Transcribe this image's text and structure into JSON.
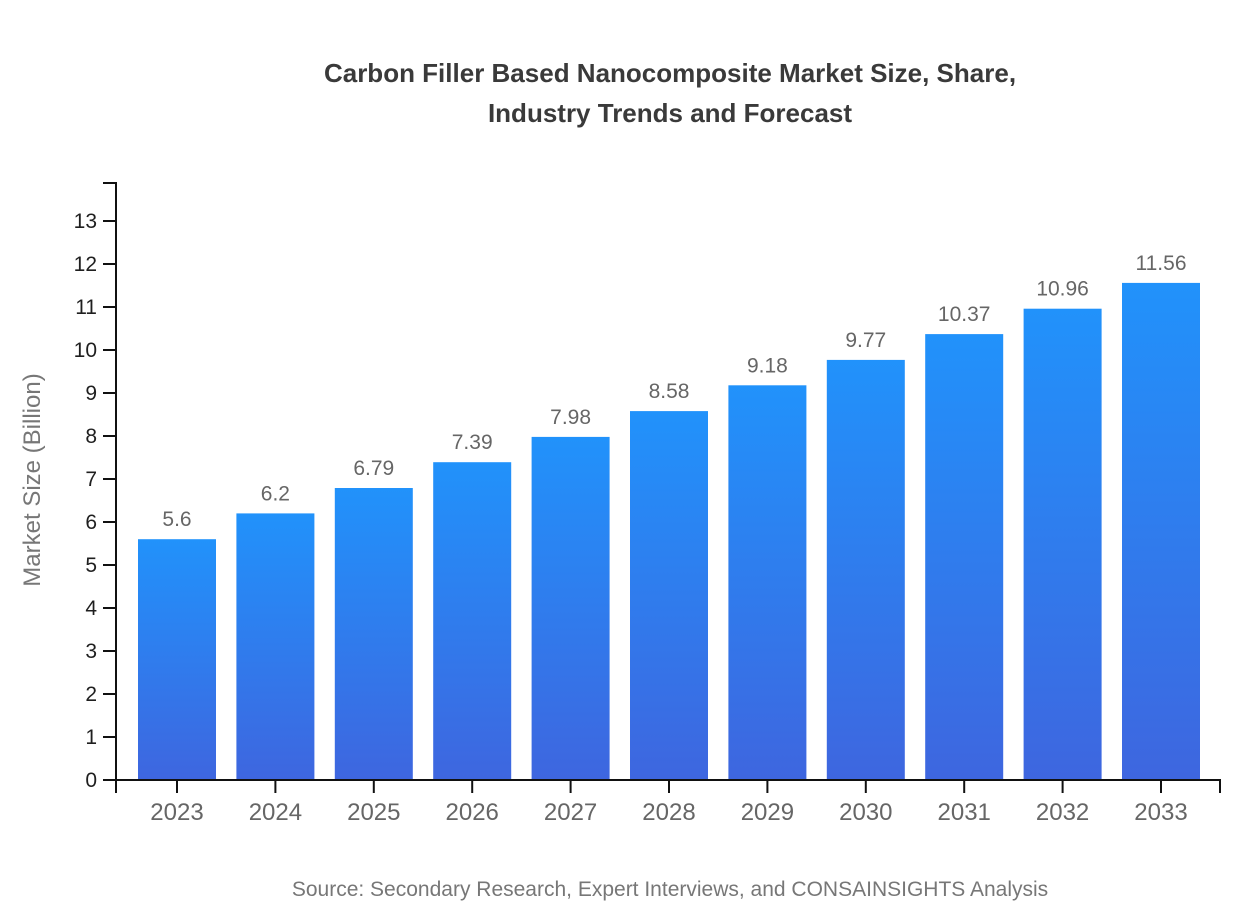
{
  "chart_data": {
    "type": "bar",
    "title": "Carbon Filler Based Nanocomposite Market Size, Share, Industry Trends and Forecast",
    "title_lines": [
      "Carbon Filler Based Nanocomposite Market Size, Share,",
      "Industry Trends and Forecast"
    ],
    "ylabel": "Market Size (Billion)",
    "xlabel": "",
    "categories": [
      "2023",
      "2024",
      "2025",
      "2026",
      "2027",
      "2028",
      "2029",
      "2030",
      "2031",
      "2032",
      "2033"
    ],
    "values": [
      5.6,
      6.2,
      6.79,
      7.39,
      7.98,
      8.58,
      9.18,
      9.77,
      10.37,
      10.96,
      11.56
    ],
    "value_labels": [
      "5.6",
      "6.2",
      "6.79",
      "7.39",
      "7.98",
      "8.58",
      "9.18",
      "9.77",
      "10.37",
      "10.96",
      "11.56"
    ],
    "yticks": [
      0,
      1,
      2,
      3,
      4,
      5,
      6,
      7,
      8,
      9,
      10,
      11,
      12,
      13
    ],
    "ylim": [
      0,
      13.9
    ],
    "grid": false,
    "legend": null,
    "colors": {
      "bar_gradient_top": "#2192FB",
      "bar_gradient_bottom": "#3E66DF",
      "axis_line": "#111111",
      "y_tick_label": "#1f1f1f",
      "x_tick_label": "#666666",
      "value_label": "#666666",
      "title": "#3a3a3a",
      "muted_text": "#777777"
    },
    "source": "Source: Secondary Research, Expert Interviews, and CONSAINSIGHTS Analysis"
  }
}
